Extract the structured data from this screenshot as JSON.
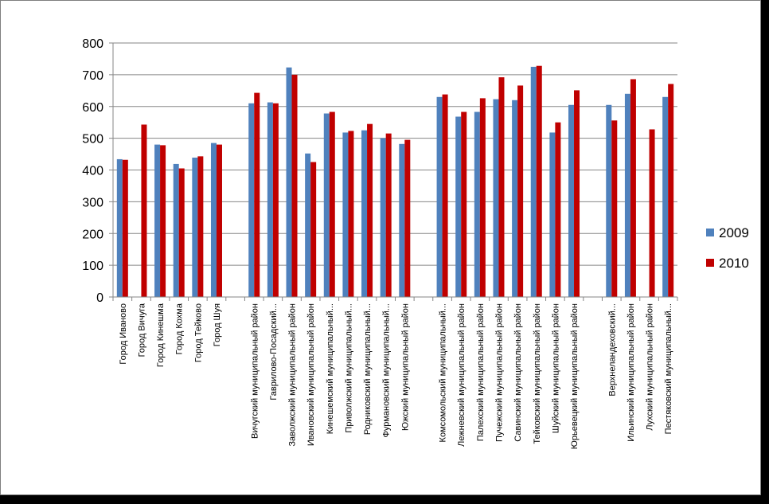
{
  "chart_data": {
    "type": "bar",
    "title": "",
    "xlabel": "",
    "ylabel": "",
    "ylim": [
      0,
      800
    ],
    "yticks": [
      0,
      100,
      200,
      300,
      400,
      500,
      600,
      700,
      800
    ],
    "legend_position": "right",
    "grid": true,
    "categories": [
      "Город Иваново",
      "Город Вичуга",
      "Город Кинешма",
      "Город Кохма",
      "Город Тейково",
      "Город Шуя",
      "",
      "Вичугский муниципальный район",
      "Гаврилово-Посадский...",
      "Заволжский муниципальный район",
      "Ивановский муниципальный район",
      "Кинешемский муниципальный...",
      "Приволжский муниципальный...",
      "Родниковский муниципальный...",
      "Фурмановский муниципальный...",
      "Южский муниципальный район",
      "",
      "Комсомольский муниципальный...",
      "Лежневский муниципальный район",
      "Палехский муниципальный район",
      "Пучежский муниципальный район",
      "Савинский муниципальный район",
      "Тейковский муниципальный район",
      "Шуйский муниципальный район",
      "Юрьевецкий муниципальный район",
      "",
      "Верхнеландеховский...",
      "Ильинский муниципальный район",
      "Лухский муниципальный район",
      "Пестяковский муниципальный..."
    ],
    "series": [
      {
        "name": "2009",
        "color": "#4f81bd",
        "values": [
          434,
          null,
          480,
          419,
          439,
          485,
          null,
          610,
          613,
          723,
          452,
          578,
          518,
          525,
          500,
          482,
          null,
          630,
          568,
          583,
          623,
          620,
          725,
          518,
          605,
          null,
          605,
          640,
          null,
          630
        ]
      },
      {
        "name": "2010",
        "color": "#c00000",
        "values": [
          432,
          543,
          478,
          405,
          443,
          480,
          null,
          643,
          610,
          700,
          425,
          583,
          523,
          545,
          515,
          495,
          null,
          638,
          583,
          626,
          692,
          666,
          728,
          550,
          651,
          null,
          556,
          686,
          528,
          671
        ]
      }
    ]
  }
}
